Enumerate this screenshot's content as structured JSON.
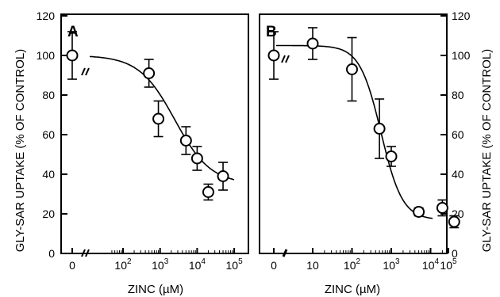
{
  "chart_data": [
    {
      "type": "scatter",
      "panel_label": "A",
      "xlabel": "ZINC (µM)",
      "ylabel": "GLY-SAR UPTAKE (% OF CONTROL)",
      "xscale": "log with axis break; first point plotted at 0",
      "xlim": [
        0,
        100000
      ],
      "ylim": [
        0,
        120
      ],
      "yticks": [
        "0",
        "20",
        "40",
        "60",
        "80",
        "100",
        "120"
      ],
      "xticks": [
        {
          "base": "0",
          "exp": ""
        },
        {
          "base": "10",
          "exp": "2"
        },
        {
          "base": "10",
          "exp": "3"
        },
        {
          "base": "10",
          "exp": "4"
        },
        {
          "base": "10",
          "exp": "5"
        }
      ],
      "points": [
        {
          "x": 0,
          "y": 100,
          "err": 12
        },
        {
          "x": 500,
          "y": 91,
          "err": 7
        },
        {
          "x": 900,
          "y": 68,
          "err": 9
        },
        {
          "x": 5000,
          "y": 57,
          "err": 7
        },
        {
          "x": 10000,
          "y": 48,
          "err": 6
        },
        {
          "x": 20000,
          "y": 31,
          "err": 4
        },
        {
          "x": 50000,
          "y": 39,
          "err": 7
        }
      ],
      "fit_curve": {
        "top": 100,
        "bottom": 35,
        "ic50": 2500,
        "hill": 0.9
      }
    },
    {
      "type": "scatter",
      "panel_label": "B",
      "xlabel": "ZINC (µM)",
      "ylabel": "GLY-SAR UPTAKE (% OF CONTROL)",
      "xscale": "log with axis break; first point plotted at 0",
      "xlim": [
        0,
        100000
      ],
      "ylim": [
        0,
        120
      ],
      "yticks": [
        "0",
        "20",
        "40",
        "60",
        "80",
        "100",
        "120"
      ],
      "xticks": [
        {
          "base": "0",
          "exp": ""
        },
        {
          "base": "10",
          "exp": ""
        },
        {
          "base": "10",
          "exp": "2"
        },
        {
          "base": "10",
          "exp": "3"
        },
        {
          "base": "10",
          "exp": "4"
        },
        {
          "base": "10",
          "exp": "5"
        }
      ],
      "points": [
        {
          "x": 0,
          "y": 100,
          "err": 12
        },
        {
          "x": 10,
          "y": 106,
          "err": 8
        },
        {
          "x": 100,
          "y": 93,
          "err": 16
        },
        {
          "x": 500,
          "y": 63,
          "err": 15
        },
        {
          "x": 1000,
          "y": 49,
          "err": 5
        },
        {
          "x": 5000,
          "y": 21,
          "err": 2
        },
        {
          "x": 20000,
          "y": 23,
          "err": 4
        },
        {
          "x": 40000,
          "y": 16,
          "err": 3
        }
      ],
      "fit_curve": {
        "top": 105,
        "bottom": 17,
        "ic50": 550,
        "hill": 1.6
      }
    }
  ]
}
